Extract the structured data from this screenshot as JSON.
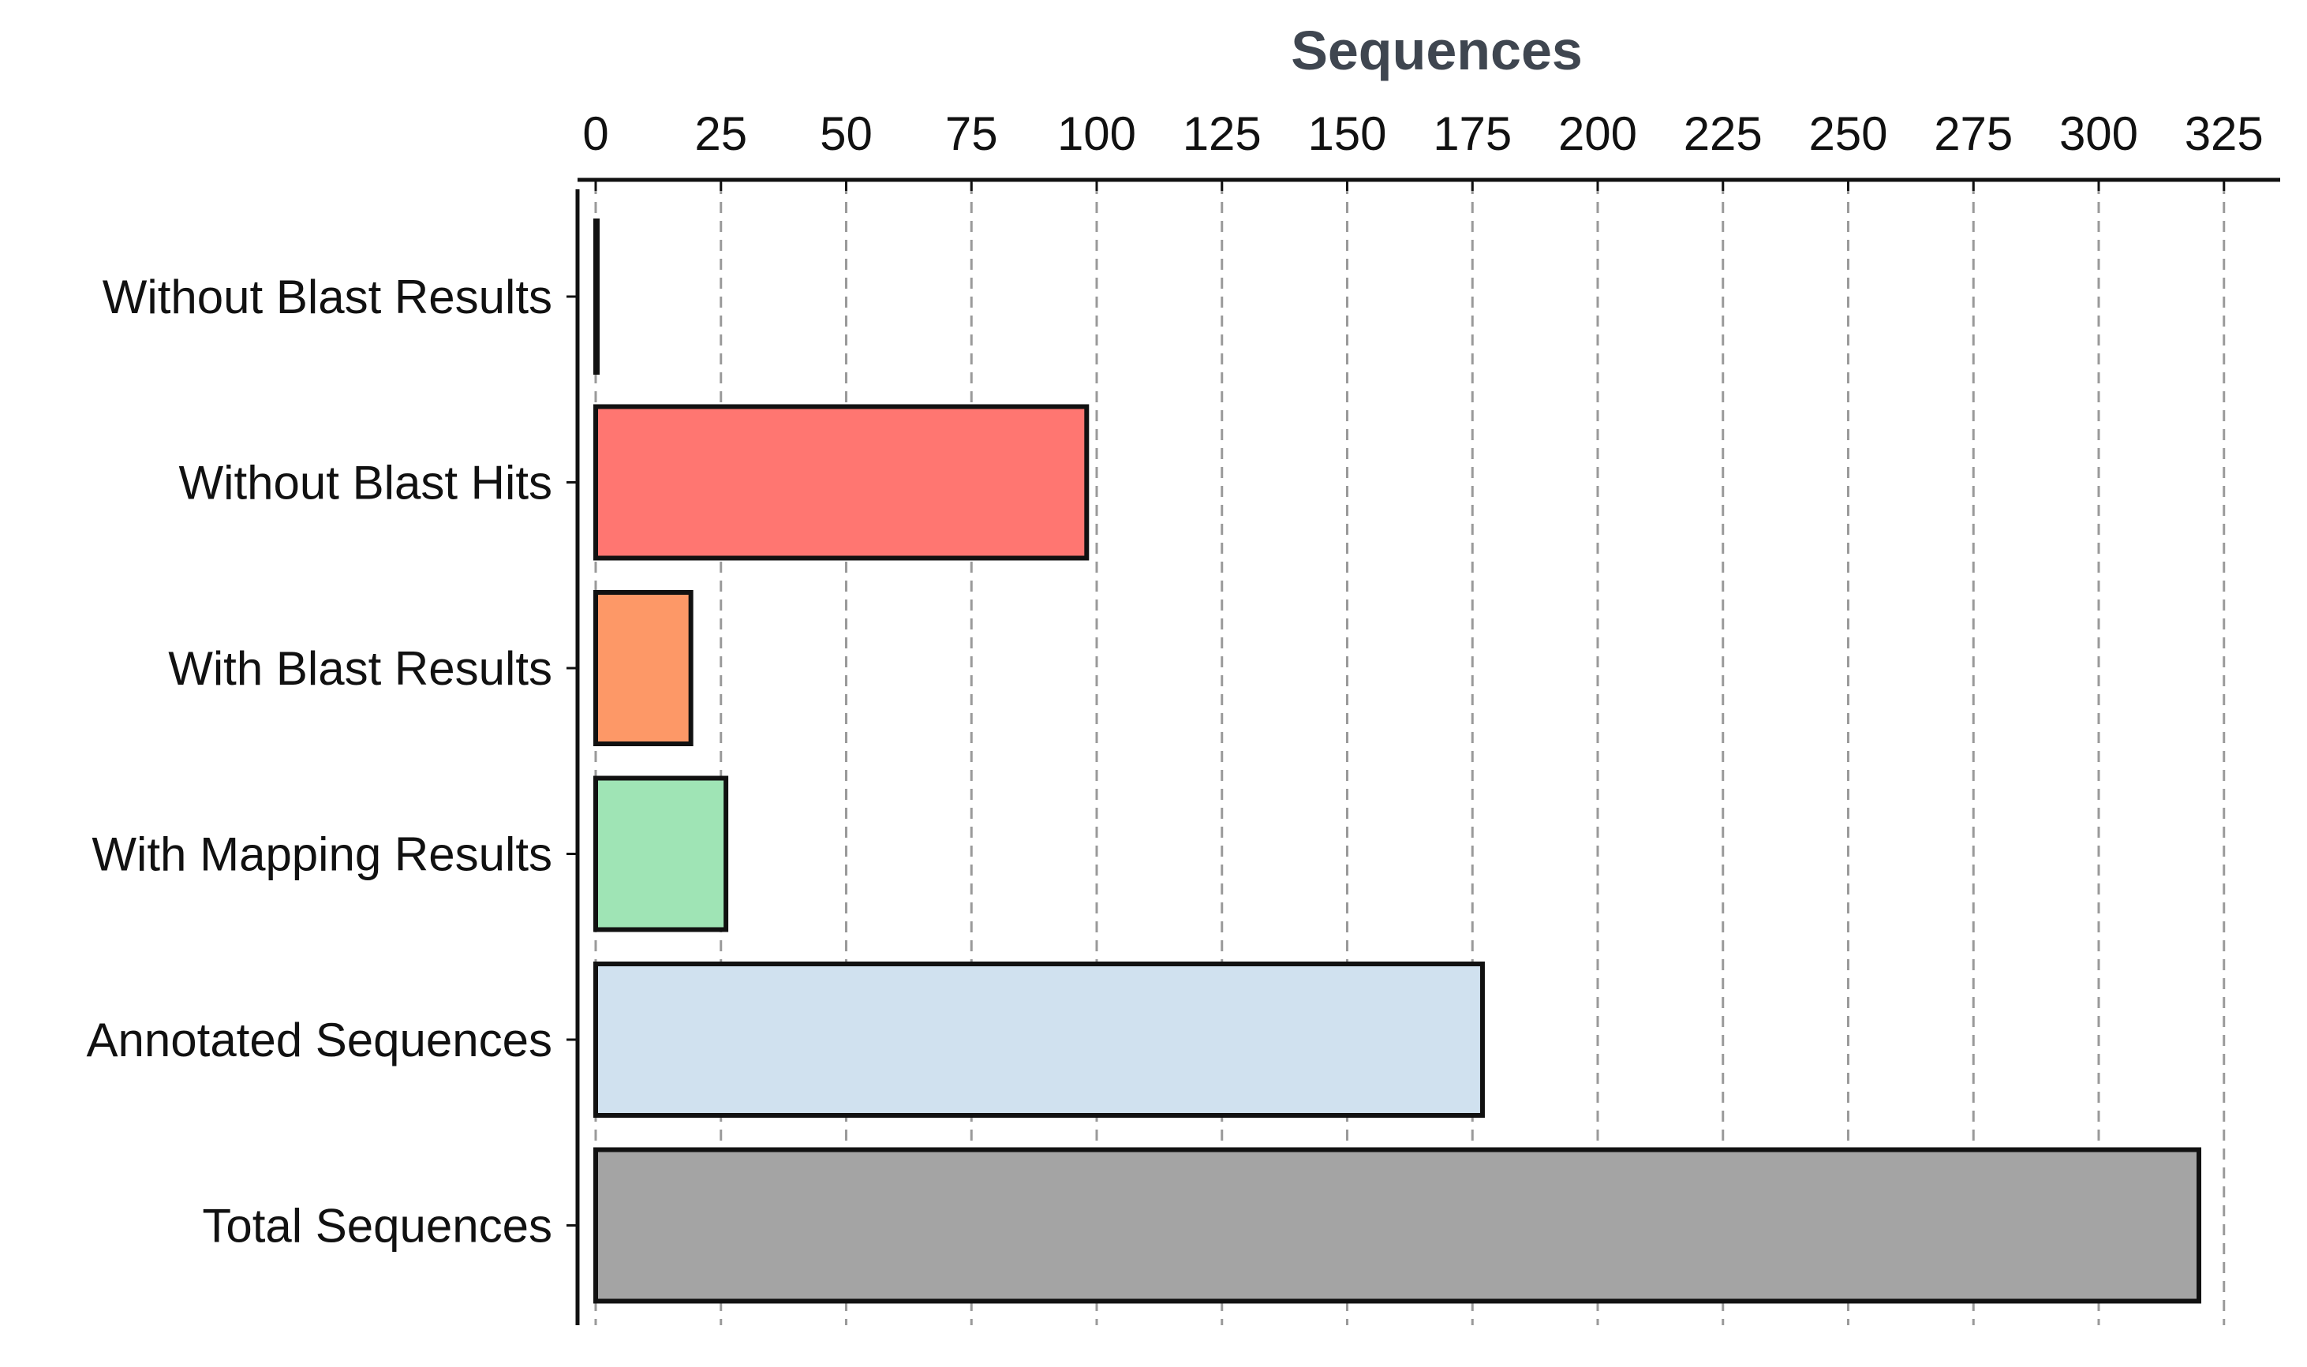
{
  "chart_data": {
    "type": "bar",
    "orientation": "horizontal",
    "title": "Sequences",
    "xlabel": "Sequences",
    "ylabel": "",
    "xlim": [
      0,
      325
    ],
    "ticks": [
      0,
      25,
      50,
      75,
      100,
      125,
      150,
      175,
      200,
      225,
      250,
      275,
      300,
      325
    ],
    "grid": true,
    "x_axis_position": "top",
    "categories": [
      "Without Blast Results",
      "Without Blast Hits",
      "With Blast Results",
      "With Mapping Results",
      "Annotated Sequences",
      "Total Sequences"
    ],
    "values": [
      0,
      98,
      19,
      26,
      177,
      320
    ],
    "colors": [
      "#5b7fa8",
      "#ff7671",
      "#fd9867",
      "#9fe4b5",
      "#d0e1ef",
      "#a4a4a4"
    ]
  }
}
